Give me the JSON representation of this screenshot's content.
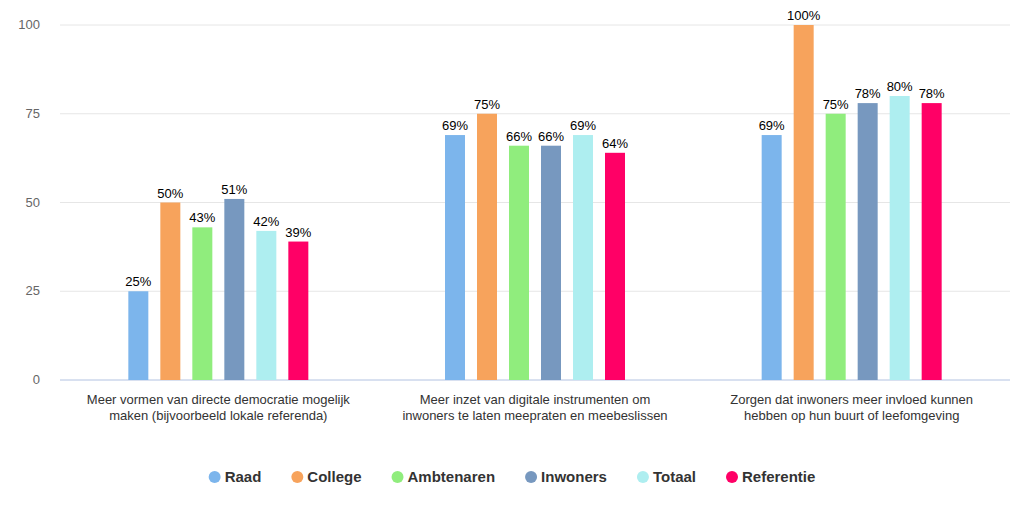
{
  "chart_data": {
    "type": "bar",
    "categories": [
      "Meer vormen van directe democratie mogelijk maken (bijvoorbeeld lokale referenda)",
      "Meer inzet van digitale instrumenten om inwoners te laten meepraten en meebeslissen",
      "Zorgen dat inwoners meer invloed kunnen hebben op hun buurt of leefomgeving"
    ],
    "series": [
      {
        "name": "Raad",
        "color": "#7cb5ec",
        "values": [
          25,
          69,
          69
        ],
        "value_labels": [
          "25%",
          "69%",
          "69%"
        ]
      },
      {
        "name": "College",
        "color": "#f7a35c",
        "values": [
          50,
          75,
          100
        ],
        "value_labels": [
          "50%",
          "75%",
          "100%"
        ]
      },
      {
        "name": "Ambtenaren",
        "color": "#90ed7d",
        "values": [
          43,
          66,
          75
        ],
        "value_labels": [
          "43%",
          "66%",
          "75%"
        ]
      },
      {
        "name": "Inwoners",
        "color": "#7798bf",
        "values": [
          51,
          66,
          78
        ],
        "value_labels": [
          "51%",
          "66%",
          "78%"
        ]
      },
      {
        "name": "Totaal",
        "color": "#aeeef0",
        "values": [
          42,
          69,
          80
        ],
        "value_labels": [
          "42%",
          "69%",
          "80%"
        ]
      },
      {
        "name": "Referentie",
        "color": "#ff0066",
        "values": [
          39,
          64,
          78
        ],
        "value_labels": [
          "39%",
          "64%",
          "78%"
        ]
      }
    ],
    "ylim": [
      0,
      100
    ],
    "yticks": [
      0,
      25,
      50,
      75,
      100
    ],
    "grid": true,
    "data_labels": true,
    "legend": "bottom"
  }
}
